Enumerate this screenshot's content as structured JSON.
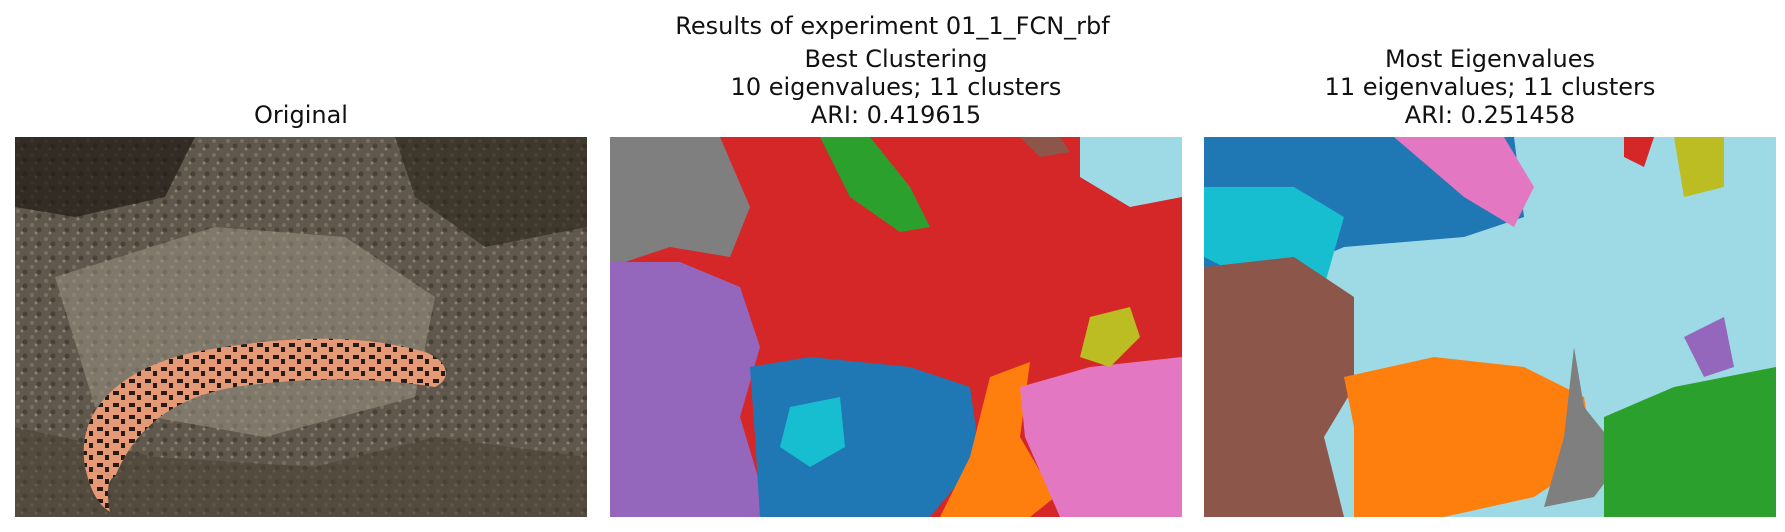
{
  "figure": {
    "suptitle": "Results of experiment 01_1_FCN_rbf",
    "panels": [
      {
        "title_lines": [
          "Original"
        ]
      },
      {
        "title_lines": [
          "Best Clustering",
          "10 eigenvalues; 11 clusters",
          "ARI: 0.419615"
        ]
      },
      {
        "title_lines": [
          "Most Eigenvalues",
          "11 eigenvalues; 11 clusters",
          "ARI: 0.251458"
        ]
      }
    ]
  },
  "palette": {
    "cluster_colors": [
      "#1f77b4",
      "#ff7f0e",
      "#2ca02c",
      "#d62728",
      "#9467bd",
      "#8c564b",
      "#e377c2",
      "#7f7f7f",
      "#bcbd22",
      "#17becf",
      "#9edae5"
    ]
  }
}
